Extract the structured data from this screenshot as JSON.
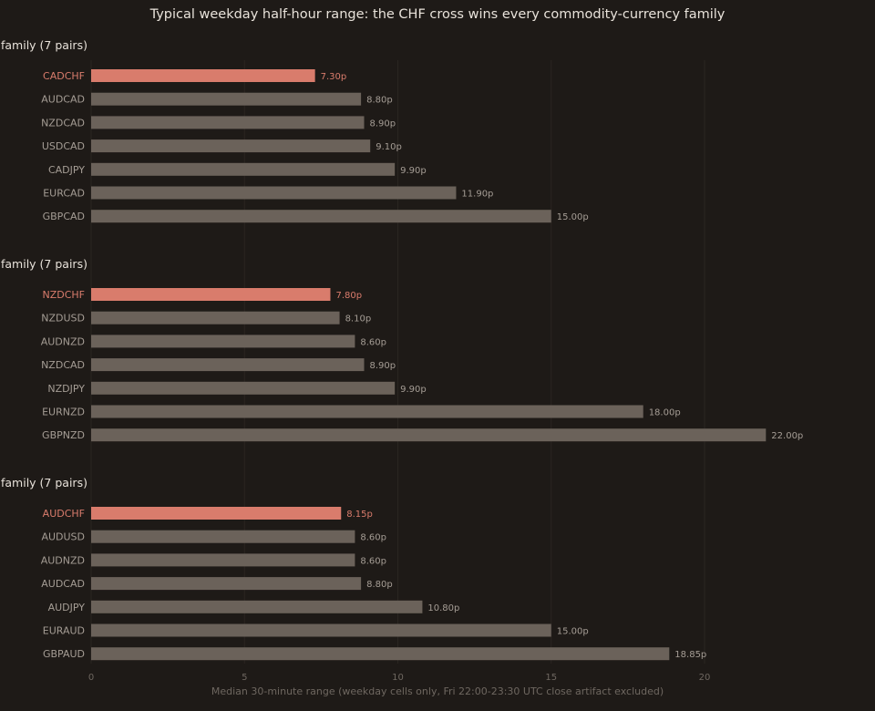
{
  "chart_data": {
    "type": "bar",
    "orientation": "horizontal",
    "title": "Typical weekday half-hour range: the CHF cross wins every commodity-currency family",
    "xlabel": "Median 30-minute range (weekday cells only, Fri 22:00-23:30 UTC close artifact excluded)",
    "xlim": [
      0,
      22.5
    ],
    "xticks": [
      0,
      5,
      10,
      15,
      20
    ],
    "value_suffix": "p",
    "grid": "vertical",
    "colors": {
      "highlight": "#d97c6c",
      "bar": "#6b625a",
      "text": "#a59d95"
    },
    "panels": [
      {
        "title": "family (7 pairs)",
        "categories": [
          "CADCHF",
          "AUDCAD",
          "NZDCAD",
          "USDCAD",
          "CADJPY",
          "EURCAD",
          "GBPCAD"
        ],
        "values": [
          7.3,
          8.8,
          8.9,
          9.1,
          9.9,
          11.9,
          15.0
        ],
        "highlight": "CADCHF"
      },
      {
        "title": "family (7 pairs)",
        "categories": [
          "NZDCHF",
          "NZDUSD",
          "AUDNZD",
          "NZDCAD",
          "NZDJPY",
          "EURNZD",
          "GBPNZD"
        ],
        "values": [
          7.8,
          8.1,
          8.6,
          8.9,
          9.9,
          18.0,
          22.0
        ],
        "highlight": "NZDCHF"
      },
      {
        "title": "family (7 pairs)",
        "categories": [
          "AUDCHF",
          "AUDUSD",
          "AUDNZD",
          "AUDCAD",
          "AUDJPY",
          "EURAUD",
          "GBPAUD"
        ],
        "values": [
          8.15,
          8.6,
          8.6,
          8.8,
          10.8,
          15.0,
          18.85
        ],
        "highlight": "AUDCHF"
      }
    ]
  }
}
